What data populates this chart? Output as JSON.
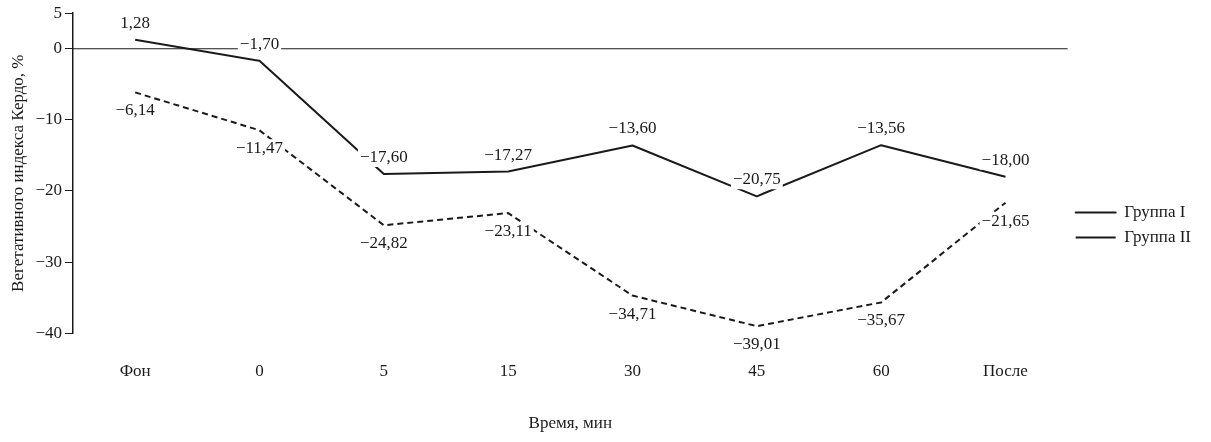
{
  "chart_data": {
    "type": "line",
    "xlabel": "Время, мин",
    "ylabel": "Вегетативного индекса Кердо, %",
    "categories": [
      "Фон",
      "0",
      "5",
      "15",
      "30",
      "45",
      "60",
      "После"
    ],
    "series": [
      {
        "name": "Группа I",
        "color": "#1a1a1a",
        "line_style": "solid",
        "values": [
          1.28,
          -1.7,
          -17.6,
          -17.27,
          -13.6,
          -20.75,
          -13.56,
          -18.0
        ],
        "value_labels": [
          "1,28",
          "−1,70",
          "−17,60",
          "−17,27",
          "−13,60",
          "−20,75",
          "−13,56",
          "−18,00"
        ]
      },
      {
        "name": "Группа II",
        "color": "#1a1a1a",
        "line_style": "dashed",
        "values": [
          -6.14,
          -11.47,
          -24.82,
          -23.11,
          -34.71,
          -39.01,
          -35.67,
          -21.65
        ],
        "value_labels": [
          "−6,14",
          "−11,47",
          "−24,82",
          "−23,11",
          "−34,71",
          "−39,01",
          "−35,67",
          "−21,65"
        ]
      }
    ],
    "ylim": [
      -40,
      5
    ],
    "yticks": [
      {
        "value": -40,
        "label": "−40"
      },
      {
        "value": -30,
        "label": "−30"
      },
      {
        "value": -20,
        "label": "−20"
      },
      {
        "value": -10,
        "label": "−10"
      },
      0,
      5
    ],
    "ref_lines": [
      {
        "axis": "y",
        "value": 0,
        "color": "#1a1a1a"
      }
    ],
    "grid": false,
    "legend": "right",
    "marker": "none"
  }
}
